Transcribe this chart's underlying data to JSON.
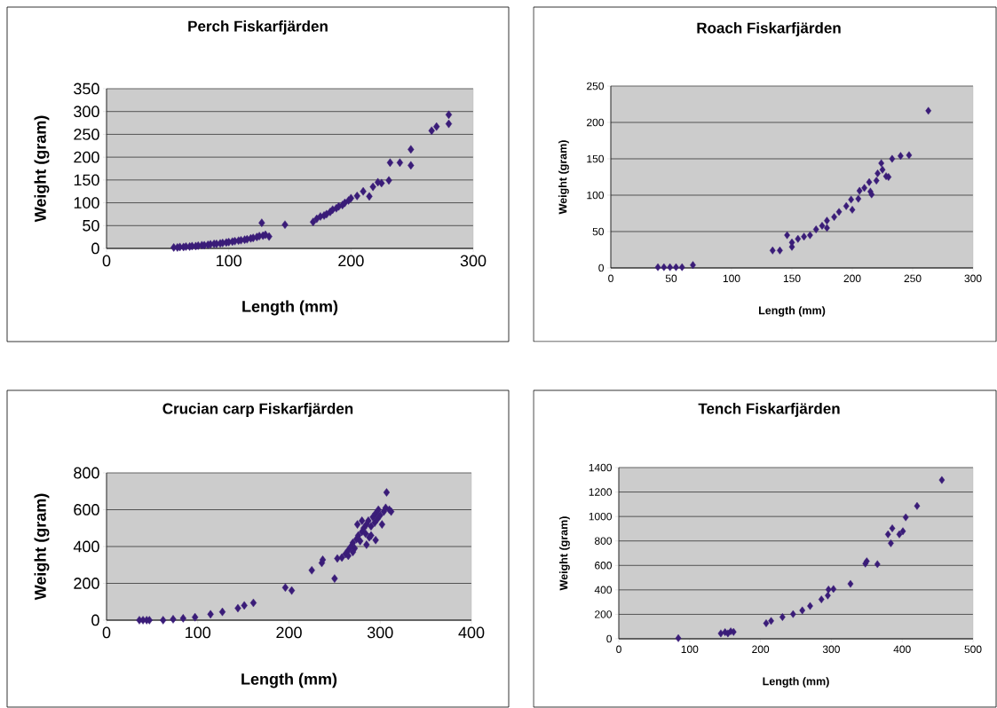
{
  "chart_data": [
    {
      "type": "scatter",
      "title": "Perch Fiskarfjärden",
      "xlabel": "Length (mm)",
      "ylabel": "Weight (gram)",
      "color": "#3a1c78",
      "marker": "diamond",
      "grid": "y",
      "xlim": [
        0,
        300
      ],
      "ylim": [
        0,
        350
      ],
      "xticks": [
        0,
        100,
        200,
        300
      ],
      "yticks": [
        0,
        50,
        100,
        150,
        200,
        250,
        300,
        350
      ],
      "x": [
        55,
        58,
        60,
        63,
        65,
        68,
        70,
        73,
        75,
        78,
        80,
        83,
        85,
        88,
        90,
        93,
        95,
        98,
        100,
        103,
        105,
        108,
        110,
        113,
        115,
        118,
        120,
        123,
        125,
        128,
        130,
        133,
        127,
        146,
        169,
        172,
        175,
        178,
        180,
        183,
        185,
        188,
        190,
        193,
        195,
        198,
        200,
        205,
        210,
        215,
        218,
        222,
        225,
        231,
        232,
        240,
        249,
        249,
        266,
        270,
        280,
        280
      ],
      "values": [
        2,
        2,
        3,
        3,
        4,
        4,
        5,
        5,
        6,
        7,
        7,
        8,
        9,
        10,
        10,
        11,
        12,
        13,
        14,
        15,
        16,
        17,
        18,
        19,
        20,
        22,
        23,
        25,
        27,
        28,
        30,
        26,
        56,
        52,
        58,
        65,
        70,
        72,
        75,
        80,
        85,
        88,
        92,
        95,
        100,
        105,
        110,
        115,
        125,
        114,
        135,
        145,
        143,
        149,
        188,
        188,
        217,
        182,
        258,
        267,
        293,
        273
      ]
    },
    {
      "type": "scatter",
      "title": "Roach Fiskarfjärden",
      "xlabel": "Length (mm)",
      "ylabel": "Weight (gram)",
      "color": "#3a1c78",
      "marker": "diamond",
      "grid": "y",
      "xlim": [
        0,
        300
      ],
      "ylim": [
        0,
        250
      ],
      "xticks": [
        0,
        50,
        100,
        150,
        200,
        250,
        300
      ],
      "yticks": [
        0,
        50,
        100,
        150,
        200,
        250
      ],
      "x": [
        39,
        44,
        49,
        54,
        59,
        68,
        134,
        140,
        146,
        150,
        150,
        155,
        160,
        165,
        170,
        175,
        179,
        179,
        185,
        189,
        195,
        199,
        200,
        205,
        206,
        210,
        214,
        215,
        216,
        220,
        221,
        224,
        225,
        228,
        230,
        233,
        240,
        247,
        263
      ],
      "values": [
        1,
        1,
        1,
        1,
        1,
        4,
        24,
        24,
        45,
        29,
        35,
        40,
        43,
        45,
        53,
        58,
        65,
        55,
        70,
        77,
        85,
        94,
        80,
        95,
        106,
        110,
        118,
        105,
        101,
        120,
        130,
        144,
        135,
        126,
        125,
        150,
        154,
        155,
        216
      ]
    },
    {
      "type": "scatter",
      "title": "Crucian carp Fiskarfjärden",
      "xlabel": "Length (mm)",
      "ylabel": "Weight (gram)",
      "color": "#3a1c78",
      "marker": "diamond",
      "grid": "y",
      "xlim": [
        0,
        400
      ],
      "ylim": [
        0,
        800
      ],
      "xticks": [
        0,
        100,
        200,
        300,
        400
      ],
      "yticks": [
        0,
        200,
        400,
        600,
        800
      ],
      "x": [
        36,
        40,
        44,
        47,
        62,
        73,
        84,
        97,
        114,
        127,
        144,
        151,
        161,
        196,
        203,
        225,
        236,
        237,
        250,
        253,
        258,
        262,
        265,
        268,
        270,
        272,
        274,
        276,
        278,
        280,
        282,
        284,
        285,
        287,
        288,
        290,
        292,
        294,
        295,
        297,
        298,
        300,
        302,
        304,
        306,
        310,
        312,
        280,
        275,
        270,
        265,
        285,
        290,
        295,
        307
      ],
      "values": [
        0,
        0,
        0,
        0,
        0,
        5,
        10,
        16,
        32,
        45,
        65,
        80,
        94,
        177,
        161,
        271,
        311,
        328,
        226,
        335,
        340,
        360,
        380,
        400,
        420,
        390,
        440,
        460,
        430,
        480,
        500,
        470,
        520,
        540,
        450,
        510,
        560,
        530,
        580,
        550,
        600,
        570,
        520,
        590,
        610,
        600,
        590,
        540,
        520,
        370,
        350,
        410,
        460,
        435,
        694
      ]
    },
    {
      "type": "scatter",
      "title": "Tench Fiskarfjärden",
      "xlabel": "Length (mm)",
      "ylabel": "Weight (gram)",
      "color": "#3a1c78",
      "marker": "diamond",
      "grid": "y",
      "xlim": [
        0,
        500
      ],
      "ylim": [
        0,
        1400
      ],
      "xticks": [
        0,
        100,
        200,
        300,
        400,
        500
      ],
      "yticks": [
        0,
        200,
        400,
        600,
        800,
        1000,
        1200,
        1400
      ],
      "x": [
        84,
        144,
        150,
        154,
        158,
        162,
        208,
        215,
        231,
        246,
        259,
        270,
        286,
        295,
        296,
        303,
        327,
        348,
        350,
        365,
        380,
        384,
        386,
        396,
        401,
        405,
        421,
        456
      ],
      "values": [
        5,
        44,
        54,
        44,
        61,
        56,
        127,
        146,
        178,
        202,
        232,
        268,
        322,
        354,
        403,
        407,
        449,
        615,
        634,
        610,
        854,
        781,
        903,
        854,
        879,
        993,
        1086,
        1298
      ]
    }
  ]
}
